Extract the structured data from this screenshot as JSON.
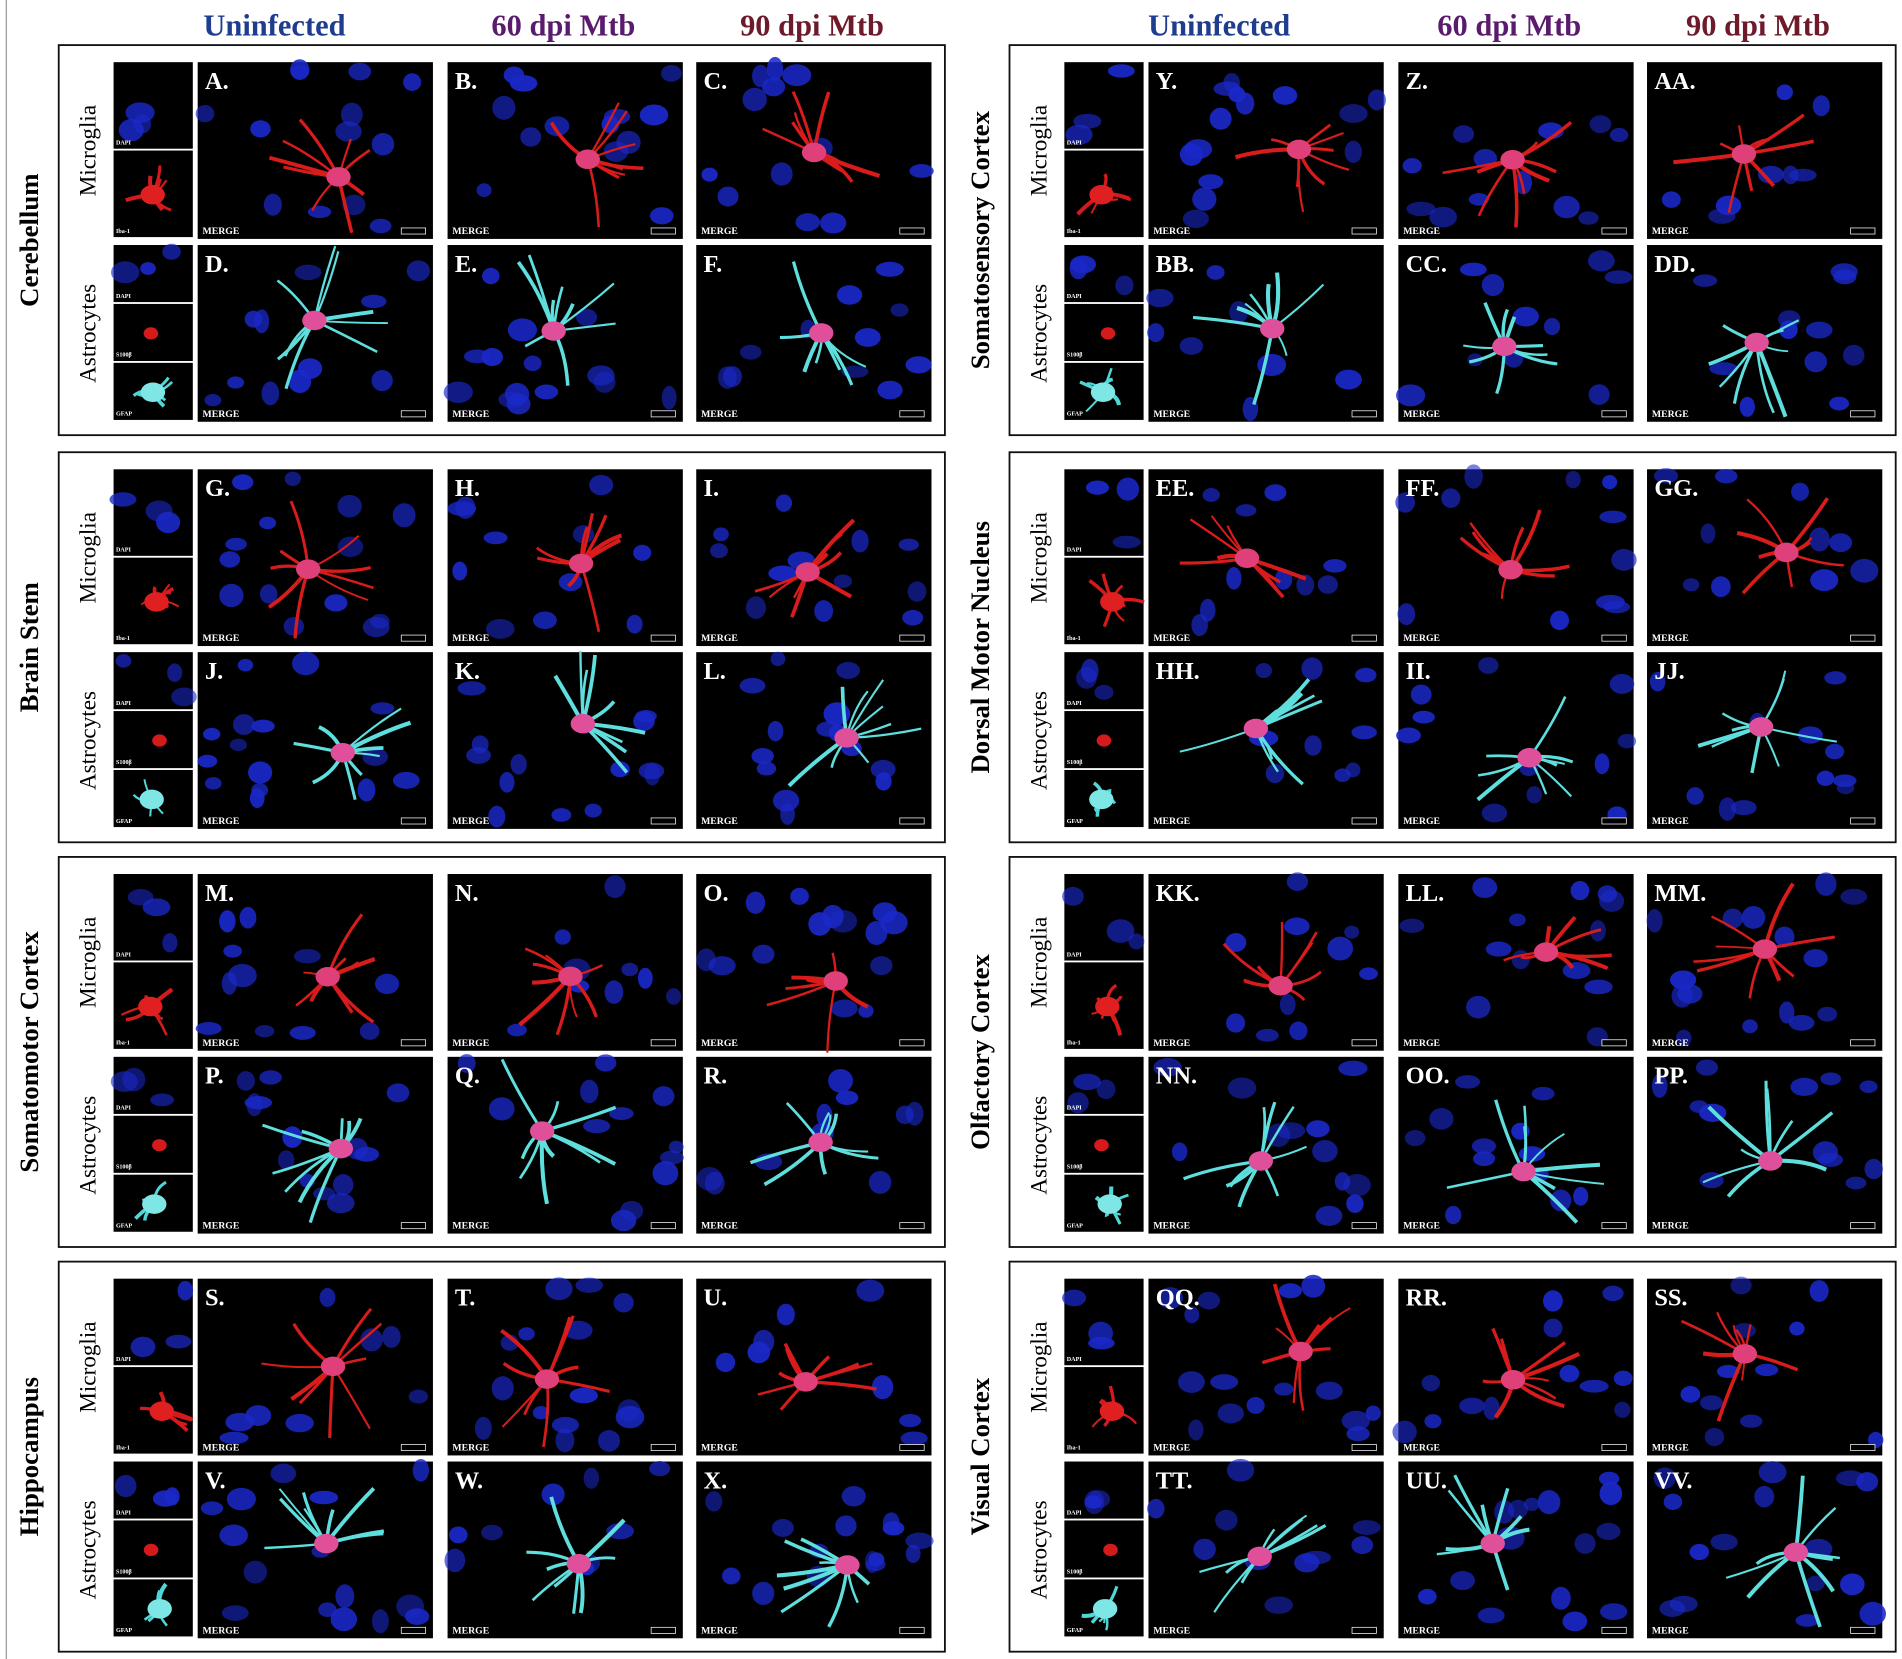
{
  "header_groups": [
    [
      "Uninfected",
      "60 dpi Mtb",
      "90 dpi Mtb"
    ],
    [
      "Uninfected",
      "60 dpi Mtb",
      "90 dpi Mtb"
    ]
  ],
  "merge_label": "MERGE",
  "regions": [
    {
      "name": "Cerebellum",
      "rows": [
        {
          "label": "Microglia",
          "channels": [
            "DAPI",
            "Iba-1"
          ],
          "panels": [
            "A.",
            "B.",
            "C."
          ]
        },
        {
          "label": "Astrocytes",
          "channels": [
            "DAPI",
            "S100β",
            "GFAP"
          ],
          "panels": [
            "D.",
            "E.",
            "F."
          ]
        }
      ]
    },
    {
      "name": "Brain Stem",
      "rows": [
        {
          "label": "Microglia",
          "channels": [
            "DAPI",
            "Iba-1"
          ],
          "panels": [
            "G.",
            "H.",
            "I."
          ]
        },
        {
          "label": "Astrocytes",
          "channels": [
            "DAPI",
            "S100β",
            "GFAP"
          ],
          "panels": [
            "J.",
            "K.",
            "L."
          ]
        }
      ]
    },
    {
      "name": "Somatomotor Cortex",
      "rows": [
        {
          "label": "Microglia",
          "channels": [
            "DAPI",
            "Iba-1"
          ],
          "panels": [
            "M.",
            "N.",
            "O."
          ]
        },
        {
          "label": "Astrocytes",
          "channels": [
            "DAPI",
            "S100β",
            "GFAP"
          ],
          "panels": [
            "P.",
            "Q.",
            "R."
          ]
        }
      ]
    },
    {
      "name": "Hippocampus",
      "rows": [
        {
          "label": "Microglia",
          "channels": [
            "DAPI",
            "Iba-1"
          ],
          "panels": [
            "S.",
            "T.",
            "U."
          ]
        },
        {
          "label": "Astrocytes",
          "channels": [
            "DAPI",
            "S100β",
            "GFAP"
          ],
          "panels": [
            "V.",
            "W.",
            "X."
          ]
        }
      ]
    },
    {
      "name": "Somatosensory Cortex",
      "rows": [
        {
          "label": "Microglia",
          "channels": [
            "DAPI",
            "Iba-1"
          ],
          "panels": [
            "Y.",
            "Z.",
            "AA."
          ]
        },
        {
          "label": "Astrocytes",
          "channels": [
            "DAPI",
            "S100β",
            "GFAP"
          ],
          "panels": [
            "BB.",
            "CC.",
            "DD."
          ]
        }
      ]
    },
    {
      "name": "Dorsal Motor Nucleus",
      "rows": [
        {
          "label": "Microglia",
          "channels": [
            "DAPI",
            "Iba-1"
          ],
          "panels": [
            "EE.",
            "FF.",
            "GG."
          ]
        },
        {
          "label": "Astrocytes",
          "channels": [
            "DAPI",
            "S100β",
            "GFAP"
          ],
          "panels": [
            "HH.",
            "II.",
            "JJ."
          ]
        }
      ]
    },
    {
      "name": "Olfactory Cortex",
      "rows": [
        {
          "label": "Microglia",
          "channels": [
            "DAPI",
            "Iba-1"
          ],
          "panels": [
            "KK.",
            "LL.",
            "MM."
          ]
        },
        {
          "label": "Astrocytes",
          "channels": [
            "DAPI",
            "S100β",
            "GFAP"
          ],
          "panels": [
            "NN.",
            "OO.",
            "PP."
          ]
        }
      ]
    },
    {
      "name": "Visual Cortex",
      "rows": [
        {
          "label": "Microglia",
          "channels": [
            "DAPI",
            "Iba-1"
          ],
          "panels": [
            "QQ.",
            "RR.",
            "SS."
          ]
        },
        {
          "label": "Astrocytes",
          "channels": [
            "DAPI",
            "S100β",
            "GFAP"
          ],
          "panels": [
            "TT.",
            "UU.",
            "VV."
          ]
        }
      ]
    }
  ]
}
